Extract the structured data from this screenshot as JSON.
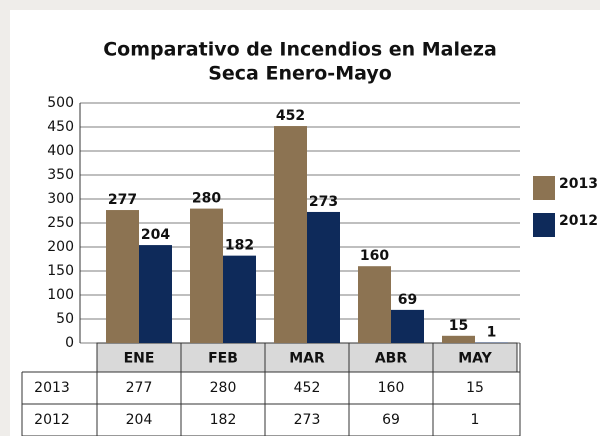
{
  "chart_data": {
    "type": "bar",
    "title": [
      "Comparativo de Incendios en Maleza",
      "Seca Enero-Mayo"
    ],
    "categories": [
      "ENE",
      "FEB",
      "MAR",
      "ABR",
      "MAY"
    ],
    "series": [
      {
        "name": "2013",
        "color": "#8c7352",
        "values": [
          277,
          280,
          452,
          160,
          15
        ]
      },
      {
        "name": "2012",
        "color": "#0e2a5a",
        "values": [
          204,
          182,
          273,
          69,
          1
        ]
      }
    ],
    "ylim": [
      0,
      500
    ],
    "yticks": [
      0,
      50,
      100,
      150,
      200,
      250,
      300,
      350,
      400,
      450,
      500
    ],
    "grid": true,
    "legend": "right",
    "data_table": true
  }
}
